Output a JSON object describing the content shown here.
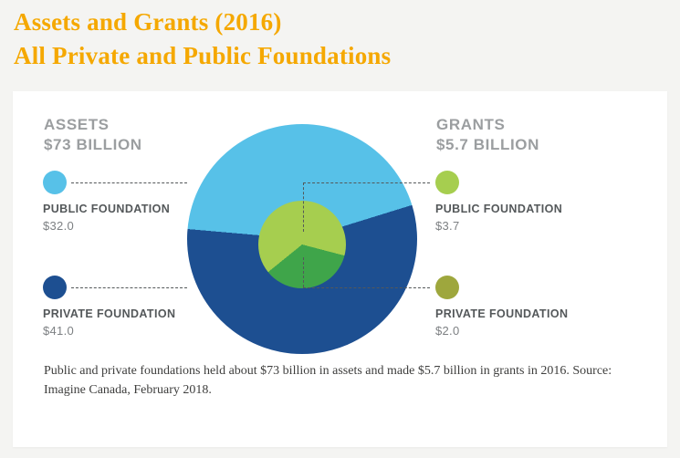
{
  "page": {
    "title_line1": "Assets and Grants (2016)",
    "title_line2": "All Private and Public Foundations",
    "accent_color": "#F5A800",
    "background_color": "#F4F4F2"
  },
  "panel": {
    "assets": {
      "heading": "ASSETS",
      "amount": "$73 BILLION",
      "legend": [
        {
          "label": "PUBLIC FOUNDATION",
          "value": "$32.0",
          "color": "#57C1E8"
        },
        {
          "label": "PRIVATE FOUNDATION",
          "value": "$41.0",
          "color": "#1D4F91"
        }
      ]
    },
    "grants": {
      "heading": "GRANTS",
      "amount": "$5.7 BILLION",
      "legend": [
        {
          "label": "PUBLIC FOUNDATION",
          "value": "$3.7",
          "color": "#A6CE4F"
        },
        {
          "label": "PRIVATE FOUNDATION",
          "value": "$2.0",
          "color": "#9EA73D"
        }
      ]
    },
    "caption": "Public and private foundations held about $73 billion in assets and made $5.7 billion in grants in 2016. Source: Imagine Canada, February 2018."
  },
  "chart_data": [
    {
      "type": "pie",
      "name": "assets",
      "title": "Assets $73 Billion",
      "labels": [
        "Public Foundation",
        "Private Foundation"
      ],
      "values": [
        32.0,
        41.0
      ],
      "total": 73.0,
      "unit": "$ billions",
      "colors": [
        "#57C1E8",
        "#1D4F91"
      ],
      "position": "outer ring (large circle)",
      "rotation_deg": -85,
      "legend_position": "left"
    },
    {
      "type": "pie",
      "name": "grants",
      "title": "Grants $5.7 Billion",
      "labels": [
        "Public Foundation",
        "Private Foundation"
      ],
      "values": [
        3.7,
        2.0
      ],
      "total": 5.7,
      "unit": "$ billions",
      "colors": [
        "#A6CE4F",
        "#3FA54A"
      ],
      "position": "inner circle (small circle)",
      "rotation_deg": 231,
      "legend_position": "right"
    }
  ]
}
